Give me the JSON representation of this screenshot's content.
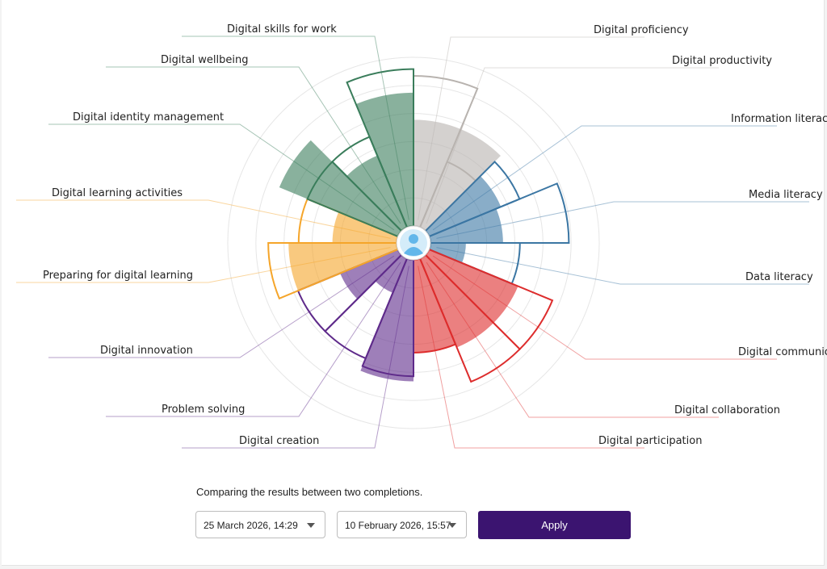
{
  "chart_data": {
    "type": "polar-bar",
    "max": 100,
    "categories": [
      {
        "label": "Digital proficiency",
        "color": "#b8b3af",
        "current": 63,
        "previous": 89
      },
      {
        "label": "Digital productivity",
        "color": "#b8b3af",
        "current": 63,
        "previous": 42
      },
      {
        "label": "Information literacy",
        "color": "#3b76a3",
        "current": 46,
        "previous": 58
      },
      {
        "label": "Media literacy",
        "color": "#3b76a3",
        "current": 43,
        "previous": 82
      },
      {
        "label": "Data literacy",
        "color": "#3b76a3",
        "current": 21,
        "previous": 53
      },
      {
        "label": "Digital communication",
        "color": "#dd2c2c",
        "current": 57,
        "previous": 79
      },
      {
        "label": "Digital collaboration",
        "color": "#dd2c2c",
        "current": 57,
        "previous": 79
      },
      {
        "label": "Digital participation",
        "color": "#dd2c2c",
        "current": 55,
        "previous": 55
      },
      {
        "label": "Digital creation",
        "color": "#5e2a8a",
        "current": 72,
        "previous": 69
      },
      {
        "label": "Problem solving",
        "color": "#5e2a8a",
        "current": 22,
        "previous": 64
      },
      {
        "label": "Digital innovation",
        "color": "#5e2a8a",
        "current": 37,
        "previous": 64
      },
      {
        "label": "Preparing for digital learning",
        "color": "#f5a52a",
        "current": 64,
        "previous": 76
      },
      {
        "label": "Digital learning activities",
        "color": "#f5a52a",
        "current": 38,
        "previous": 58
      },
      {
        "label": "Digital identity management",
        "color": "#3a7d5b",
        "current": 76,
        "previous": 58
      },
      {
        "label": "Digital wellbeing",
        "color": "#3a7d5b",
        "current": 46,
        "previous": 58
      },
      {
        "label": "Digital skills for work",
        "color": "#3a7d5b",
        "current": 79,
        "previous": 93
      }
    ]
  },
  "compare": {
    "text": "Comparing the results between two completions.",
    "first_date": "25 March 2026, 14:29",
    "second_date": "10 February 2026, 15:57",
    "apply_label": "Apply"
  }
}
